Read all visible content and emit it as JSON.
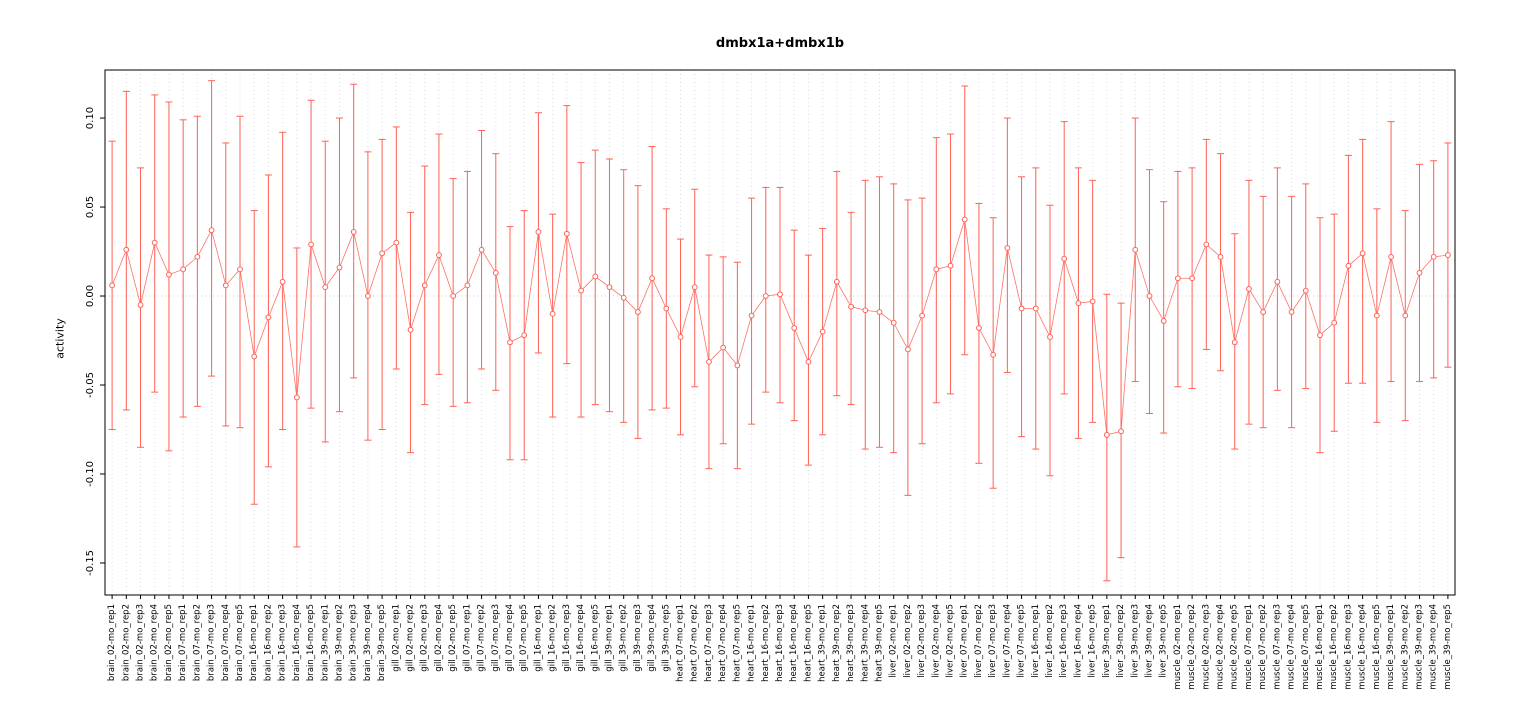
{
  "chart_data": {
    "type": "scatter",
    "title": "dmbx1a+dmbx1b",
    "xlabel": "",
    "ylabel": "activity",
    "ylim": [
      -0.168,
      0.127
    ],
    "grid": "vertical-dotted",
    "legend": "none",
    "marker": "open-circle-with-error-bars",
    "ytick_values": [
      0.1,
      0.05,
      0.0,
      -0.05,
      -0.1,
      -0.15
    ],
    "ytick_labels": [
      "0.10",
      "0.05",
      "0.00",
      "-0.05",
      "-0.10",
      "-0.15"
    ],
    "colors": {
      "series": "#ff6257",
      "grid": "#dcdcdc",
      "zero_line": "#cfcfcf",
      "axis": "#000000",
      "marker_fill": "#ffffff"
    },
    "categories": [
      "brain_02-mo_rep1",
      "brain_02-mo_rep2",
      "brain_02-mo_rep3",
      "brain_02-mo_rep4",
      "brain_02-mo_rep5",
      "brain_07-mo_rep1",
      "brain_07-mo_rep2",
      "brain_07-mo_rep3",
      "brain_07-mo_rep4",
      "brain_07-mo_rep5",
      "brain_16-mo_rep1",
      "brain_16-mo_rep2",
      "brain_16-mo_rep3",
      "brain_16-mo_rep4",
      "brain_16-mo_rep5",
      "brain_39-mo_rep1",
      "brain_39-mo_rep2",
      "brain_39-mo_rep3",
      "brain_39-mo_rep4",
      "brain_39-mo_rep5",
      "gill_02-mo_rep1",
      "gill_02-mo_rep2",
      "gill_02-mo_rep3",
      "gill_02-mo_rep4",
      "gill_02-mo_rep5",
      "gill_07-mo_rep1",
      "gill_07-mo_rep2",
      "gill_07-mo_rep3",
      "gill_07-mo_rep4",
      "gill_07-mo_rep5",
      "gill_16-mo_rep1",
      "gill_16-mo_rep2",
      "gill_16-mo_rep3",
      "gill_16-mo_rep4",
      "gill_16-mo_rep5",
      "gill_39-mo_rep1",
      "gill_39-mo_rep2",
      "gill_39-mo_rep3",
      "gill_39-mo_rep4",
      "gill_39-mo_rep5",
      "heart_07-mo_rep1",
      "heart_07-mo_rep2",
      "heart_07-mo_rep3",
      "heart_07-mo_rep4",
      "heart_07-mo_rep5",
      "heart_16-mo_rep1",
      "heart_16-mo_rep2",
      "heart_16-mo_rep3",
      "heart_16-mo_rep4",
      "heart_16-mo_rep5",
      "heart_39-mo_rep1",
      "heart_39-mo_rep2",
      "heart_39-mo_rep3",
      "heart_39-mo_rep4",
      "heart_39-mo_rep5",
      "liver_02-mo_rep1",
      "liver_02-mo_rep2",
      "liver_02-mo_rep3",
      "liver_02-mo_rep4",
      "liver_02-mo_rep5",
      "liver_07-mo_rep1",
      "liver_07-mo_rep2",
      "liver_07-mo_rep3",
      "liver_07-mo_rep4",
      "liver_07-mo_rep5",
      "liver_16-mo_rep1",
      "liver_16-mo_rep2",
      "liver_16-mo_rep3",
      "liver_16-mo_rep4",
      "liver_16-mo_rep5",
      "liver_39-mo_rep1",
      "liver_39-mo_rep2",
      "liver_39-mo_rep3",
      "liver_39-mo_rep4",
      "liver_39-mo_rep5",
      "muscle_02-mo_rep1",
      "muscle_02-mo_rep2",
      "muscle_02-mo_rep3",
      "muscle_02-mo_rep4",
      "muscle_02-mo_rep5",
      "muscle_07-mo_rep1",
      "muscle_07-mo_rep2",
      "muscle_07-mo_rep3",
      "muscle_07-mo_rep4",
      "muscle_07-mo_rep5",
      "muscle_16-mo_rep1",
      "muscle_16-mo_rep2",
      "muscle_16-mo_rep3",
      "muscle_16-mo_rep4",
      "muscle_16-mo_rep5",
      "muscle_39-mo_rep1",
      "muscle_39-mo_rep2",
      "muscle_39-mo_rep3",
      "muscle_39-mo_rep4",
      "muscle_39-mo_rep5"
    ],
    "series": [
      {
        "name": "mean",
        "values": [
          0.006,
          0.026,
          -0.005,
          0.03,
          0.012,
          0.015,
          0.022,
          0.037,
          0.006,
          0.015,
          -0.034,
          -0.012,
          0.008,
          -0.057,
          0.029,
          0.005,
          0.016,
          0.036,
          0.0,
          0.024,
          0.03,
          -0.019,
          0.006,
          0.023,
          0.0,
          0.006,
          0.026,
          0.013,
          -0.026,
          -0.022,
          0.036,
          -0.01,
          0.035,
          0.003,
          0.011,
          0.005,
          -0.001,
          -0.009,
          0.01,
          -0.007,
          -0.023,
          0.005,
          -0.037,
          -0.029,
          -0.039,
          -0.011,
          0.0,
          0.001,
          -0.018,
          -0.037,
          -0.02,
          0.008,
          -0.006,
          -0.008,
          -0.009,
          -0.015,
          -0.03,
          -0.011,
          0.015,
          0.017,
          0.043,
          -0.018,
          -0.033,
          0.027,
          -0.007,
          -0.007,
          -0.023,
          0.021,
          -0.004,
          -0.003,
          -0.078,
          -0.076,
          0.026,
          0.0,
          -0.014,
          0.01,
          0.01,
          0.029,
          0.022,
          -0.026,
          0.004,
          -0.009,
          0.008,
          -0.009,
          0.003,
          -0.022,
          -0.015,
          0.017,
          0.024,
          -0.011,
          0.022,
          -0.011,
          0.013,
          0.022,
          0.023
        ]
      },
      {
        "name": "upper",
        "values": [
          0.087,
          0.115,
          0.072,
          0.113,
          0.109,
          0.099,
          0.101,
          0.121,
          0.086,
          0.101,
          0.048,
          0.068,
          0.092,
          0.027,
          0.11,
          0.087,
          0.1,
          0.119,
          0.081,
          0.088,
          0.095,
          0.047,
          0.073,
          0.091,
          0.066,
          0.07,
          0.093,
          0.08,
          0.039,
          0.048,
          0.103,
          0.046,
          0.107,
          0.075,
          0.082,
          0.077,
          0.071,
          0.062,
          0.084,
          0.049,
          0.032,
          0.06,
          0.023,
          0.022,
          0.019,
          0.055,
          0.061,
          0.061,
          0.037,
          0.023,
          0.038,
          0.07,
          0.047,
          0.065,
          0.067,
          0.063,
          0.054,
          0.055,
          0.089,
          0.091,
          0.118,
          0.052,
          0.044,
          0.1,
          0.067,
          0.072,
          0.051,
          0.098,
          0.072,
          0.065,
          0.001,
          -0.004,
          0.1,
          0.071,
          0.053,
          0.07,
          0.072,
          0.088,
          0.08,
          0.035,
          0.065,
          0.056,
          0.072,
          0.056,
          0.063,
          0.044,
          0.046,
          0.079,
          0.088,
          0.049,
          0.098,
          0.048,
          0.074,
          0.076,
          0.086
        ]
      },
      {
        "name": "lower",
        "values": [
          -0.075,
          -0.064,
          -0.085,
          -0.054,
          -0.087,
          -0.068,
          -0.062,
          -0.045,
          -0.073,
          -0.074,
          -0.117,
          -0.096,
          -0.075,
          -0.141,
          -0.063,
          -0.082,
          -0.065,
          -0.046,
          -0.081,
          -0.075,
          -0.041,
          -0.088,
          -0.061,
          -0.044,
          -0.062,
          -0.06,
          -0.041,
          -0.053,
          -0.092,
          -0.092,
          -0.032,
          -0.068,
          -0.038,
          -0.068,
          -0.061,
          -0.065,
          -0.071,
          -0.08,
          -0.064,
          -0.063,
          -0.078,
          -0.051,
          -0.097,
          -0.083,
          -0.097,
          -0.072,
          -0.054,
          -0.06,
          -0.07,
          -0.095,
          -0.078,
          -0.056,
          -0.061,
          -0.086,
          -0.085,
          -0.088,
          -0.112,
          -0.083,
          -0.06,
          -0.055,
          -0.033,
          -0.094,
          -0.108,
          -0.043,
          -0.079,
          -0.086,
          -0.101,
          -0.055,
          -0.08,
          -0.071,
          -0.16,
          -0.147,
          -0.048,
          -0.066,
          -0.077,
          -0.051,
          -0.052,
          -0.03,
          -0.042,
          -0.086,
          -0.072,
          -0.074,
          -0.053,
          -0.074,
          -0.052,
          -0.088,
          -0.076,
          -0.049,
          -0.049,
          -0.071,
          -0.048,
          -0.07,
          -0.048,
          -0.046,
          -0.04
        ]
      }
    ]
  }
}
